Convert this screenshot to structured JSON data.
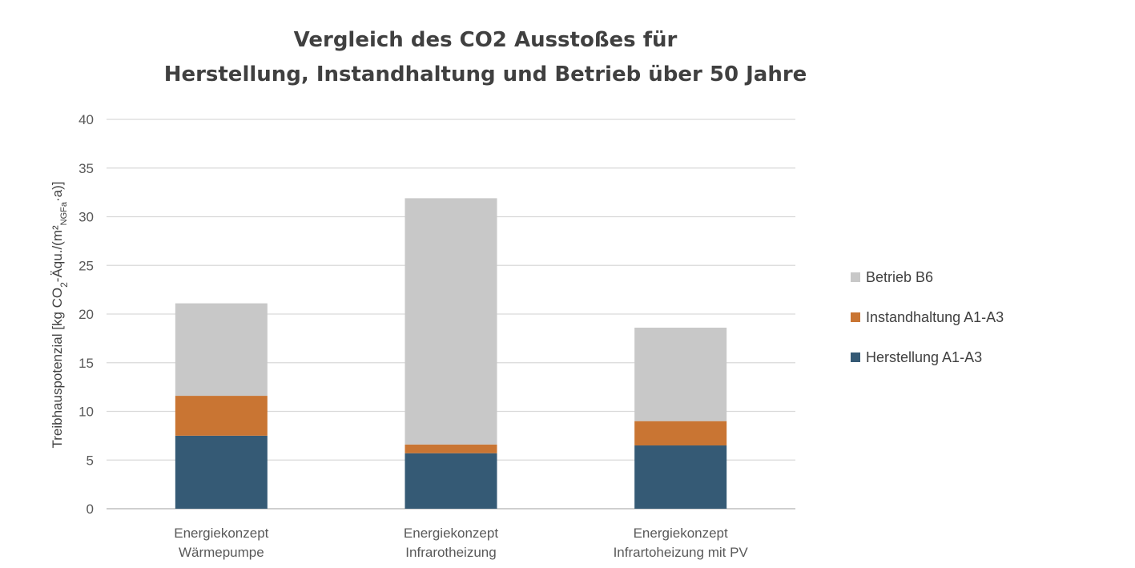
{
  "chart_data": {
    "type": "bar",
    "stacked": true,
    "title_lines": [
      "Vergleich des CO2 Ausstoßes für",
      "Herstellung, Instandhaltung und Betrieb über 50 Jahre"
    ],
    "ylabel": {
      "prefix": "Treibhauspotenzial [kg CO",
      "sub1": "2",
      "middle": "-Äqu./(m²",
      "sub2": "NGFa",
      "suffix": "·a)]"
    },
    "ylim": [
      0,
      40
    ],
    "yticks": [
      0,
      5,
      10,
      15,
      20,
      25,
      30,
      35,
      40
    ],
    "grid": true,
    "legend_position": "right",
    "categories": [
      [
        "Energiekonzept",
        "Wärmepumpe"
      ],
      [
        "Energiekonzept",
        "Infrarotheizung"
      ],
      [
        "Energiekonzept",
        "Infrartoheizung mit PV"
      ]
    ],
    "series": [
      {
        "name": "Herstellung A1-A3",
        "color": "#355a75",
        "values": [
          7.5,
          5.7,
          6.5
        ]
      },
      {
        "name": "Instandhaltung A1-A3",
        "color": "#c97533",
        "values": [
          4.1,
          0.9,
          2.5
        ]
      },
      {
        "name": "Betrieb B6",
        "color": "#c8c8c8",
        "values": [
          9.5,
          25.3,
          9.6
        ]
      }
    ]
  }
}
